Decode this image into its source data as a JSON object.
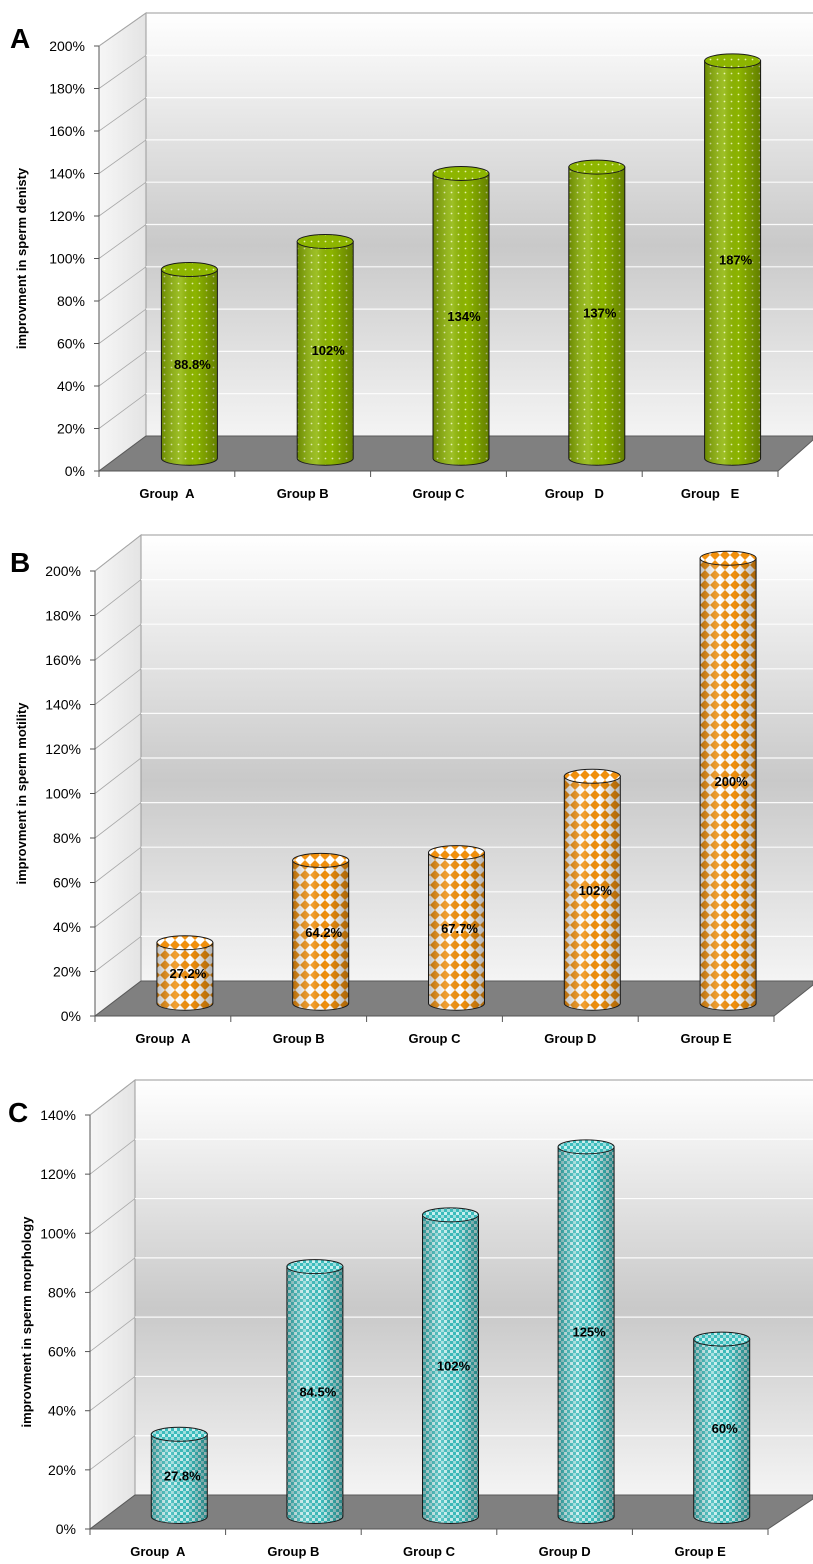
{
  "chart_data": [
    {
      "type": "bar",
      "panel": "A",
      "ylabel": "improvment in sperm denisty",
      "categories": [
        "Group  A",
        "Group B",
        "Group C",
        "Group   D",
        "Group   E"
      ],
      "values": [
        88.8,
        102,
        134,
        137,
        187
      ],
      "data_labels": [
        "88.8%",
        "102%",
        "134%",
        "137%",
        "187%"
      ],
      "yticks": [
        "0%",
        "20%",
        "40%",
        "60%",
        "80%",
        "100%",
        "120%",
        "140%",
        "160%",
        "180%",
        "200%"
      ],
      "ylim": [
        0,
        200
      ],
      "color": "#8db500"
    },
    {
      "type": "bar",
      "panel": "B",
      "ylabel": "improvment in sperm motility",
      "categories": [
        "Group  A",
        "Group B",
        "Group C",
        "Group D",
        "Group E"
      ],
      "values": [
        27.2,
        64.2,
        67.7,
        102,
        200
      ],
      "data_labels": [
        "27.2%",
        "64.2%",
        "67.7%",
        "102%",
        "200%"
      ],
      "yticks": [
        "0%",
        "20%",
        "40%",
        "60%",
        "80%",
        "100%",
        "120%",
        "140%",
        "160%",
        "180%",
        "200%"
      ],
      "ylim": [
        0,
        200
      ],
      "color": "#f0900e"
    },
    {
      "type": "bar",
      "panel": "C",
      "ylabel": "improvment in sperm morphology",
      "categories": [
        "Group  A",
        "Group B",
        "Group C",
        "Group D",
        "Group E"
      ],
      "values": [
        27.8,
        84.5,
        102,
        125,
        60
      ],
      "data_labels": [
        "27.8%",
        "84.5%",
        "102%",
        "125%",
        "60%"
      ],
      "yticks": [
        "0%",
        "20%",
        "40%",
        "60%",
        "80%",
        "100%",
        "120%",
        "140%"
      ],
      "ylim": [
        0,
        140
      ],
      "color": "#3cbcbc"
    }
  ]
}
